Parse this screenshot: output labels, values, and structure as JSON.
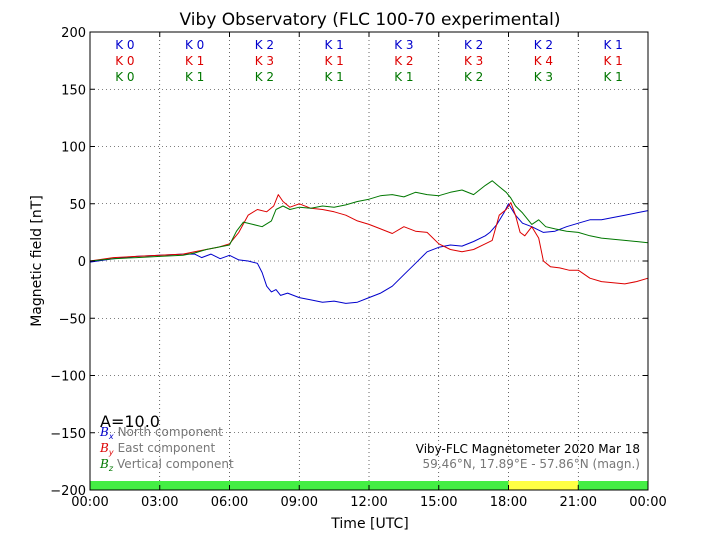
{
  "chart_data": {
    "type": "line",
    "title": "Viby Observatory (FLC 100-70 experimental)",
    "xlabel": "Time [UTC]",
    "ylabel": "Magnetic field [nT]",
    "xlim": [
      0,
      24
    ],
    "ylim": [
      -200,
      200
    ],
    "grid": true,
    "x_ticks": [
      0,
      3,
      6,
      9,
      12,
      15,
      18,
      21,
      24
    ],
    "x_tick_labels": [
      "00:00",
      "03:00",
      "06:00",
      "09:00",
      "12:00",
      "15:00",
      "18:00",
      "21:00",
      "00:00"
    ],
    "y_ticks": [
      -200,
      -150,
      -100,
      -50,
      0,
      50,
      100,
      150,
      200
    ],
    "y_tick_labels": [
      "−200",
      "−150",
      "−100",
      "−50",
      "0",
      "50",
      "100",
      "150",
      "200"
    ],
    "annotations": {
      "a_index": "A=10.0",
      "instrument": "Viby-FLC Magnetometer 2020 Mar 18",
      "location": "59.46°N, 17.89°E - 57.86°N (magn.)"
    },
    "k_index": {
      "north": [
        "K 0",
        "K 0",
        "K 2",
        "K 1",
        "K 3",
        "K 2",
        "K 2",
        "K 1"
      ],
      "east": [
        "K 0",
        "K 1",
        "K 3",
        "K 1",
        "K 2",
        "K 3",
        "K 4",
        "K 1"
      ],
      "vertical": [
        "K 0",
        "K 1",
        "K 2",
        "K 1",
        "K 1",
        "K 2",
        "K 3",
        "K 1"
      ]
    },
    "activity_bar": [
      {
        "from": 0,
        "to": 18,
        "level": "quiet",
        "color": "#44ee44"
      },
      {
        "from": 18,
        "to": 21,
        "level": "active",
        "color": "#ffff44"
      },
      {
        "from": 21,
        "to": 24,
        "level": "quiet",
        "color": "#44ee44"
      }
    ],
    "legend_placement": "bottom-left",
    "series": [
      {
        "symbol": "B",
        "subscript": "x",
        "name": "North component",
        "color": "#0000cc",
        "x": [
          0,
          1,
          2,
          3,
          4,
          4.5,
          4.8,
          5.2,
          5.6,
          6.0,
          6.4,
          6.8,
          7.2,
          7.4,
          7.6,
          7.8,
          8.0,
          8.2,
          8.5,
          9.0,
          9.5,
          10.0,
          10.5,
          11.0,
          11.5,
          12.0,
          12.5,
          13.0,
          13.5,
          14.0,
          14.5,
          15.0,
          15.5,
          16.0,
          16.5,
          17.0,
          17.2,
          17.5,
          17.8,
          18.0,
          18.3,
          18.6,
          19.0,
          19.5,
          20.0,
          20.5,
          21.0,
          21.5,
          22.0,
          22.5,
          23.0,
          23.5,
          24.0
        ],
        "y": [
          -1,
          2,
          4,
          5,
          6,
          6,
          3,
          6,
          2,
          5,
          1,
          0,
          -2,
          -10,
          -22,
          -27,
          -25,
          -30,
          -28,
          -32,
          -34,
          -36,
          -35,
          -37,
          -36,
          -32,
          -28,
          -22,
          -12,
          -2,
          8,
          12,
          14,
          13,
          17,
          22,
          25,
          32,
          42,
          50,
          40,
          33,
          30,
          25,
          26,
          30,
          33,
          36,
          36,
          38,
          40,
          42,
          44
        ]
      },
      {
        "symbol": "B",
        "subscript": "y",
        "name": "East component",
        "color": "#dd0000",
        "x": [
          0,
          1,
          2,
          3,
          4,
          4.5,
          5.0,
          5.5,
          6.0,
          6.4,
          6.8,
          7.2,
          7.6,
          7.9,
          8.1,
          8.3,
          8.6,
          9.0,
          9.5,
          10.0,
          10.5,
          11.0,
          11.5,
          12.0,
          12.5,
          13.0,
          13.5,
          14.0,
          14.5,
          15.0,
          15.5,
          16.0,
          16.5,
          17.0,
          17.3,
          17.6,
          17.9,
          18.1,
          18.3,
          18.5,
          18.7,
          19.0,
          19.3,
          19.5,
          19.8,
          20.2,
          20.6,
          21.0,
          21.5,
          22.0,
          22.5,
          23.0,
          23.5,
          24.0
        ],
        "y": [
          0,
          3,
          4,
          5,
          6,
          8,
          10,
          12,
          15,
          25,
          40,
          45,
          43,
          48,
          58,
          52,
          47,
          50,
          46,
          45,
          43,
          40,
          35,
          32,
          28,
          24,
          30,
          26,
          25,
          15,
          10,
          8,
          10,
          15,
          18,
          40,
          45,
          51,
          40,
          25,
          22,
          30,
          20,
          0,
          -5,
          -6,
          -8,
          -8,
          -15,
          -18,
          -19,
          -20,
          -18,
          -15
        ]
      },
      {
        "symbol": "B",
        "subscript": "z",
        "name": "Vertical component",
        "color": "#007700",
        "x": [
          0,
          1,
          2,
          3,
          4,
          4.5,
          5.0,
          5.5,
          6.0,
          6.3,
          6.6,
          7.0,
          7.4,
          7.8,
          8.0,
          8.3,
          8.6,
          9.0,
          9.5,
          10.0,
          10.5,
          11.0,
          11.5,
          12.0,
          12.5,
          13.0,
          13.5,
          14.0,
          14.5,
          15.0,
          15.5,
          16.0,
          16.5,
          17.0,
          17.3,
          17.6,
          17.9,
          18.1,
          18.3,
          18.6,
          19.0,
          19.3,
          19.6,
          20.0,
          20.5,
          21.0,
          21.5,
          22.0,
          22.5,
          23.0,
          23.5,
          24.0
        ],
        "y": [
          0,
          2,
          3,
          4,
          5,
          7,
          10,
          12,
          14,
          26,
          34,
          32,
          30,
          35,
          45,
          48,
          45,
          47,
          46,
          48,
          47,
          49,
          52,
          54,
          57,
          58,
          56,
          60,
          58,
          57,
          60,
          62,
          58,
          66,
          70,
          65,
          60,
          55,
          48,
          42,
          32,
          36,
          30,
          28,
          26,
          25,
          22,
          20,
          19,
          18,
          17,
          16
        ]
      }
    ]
  }
}
